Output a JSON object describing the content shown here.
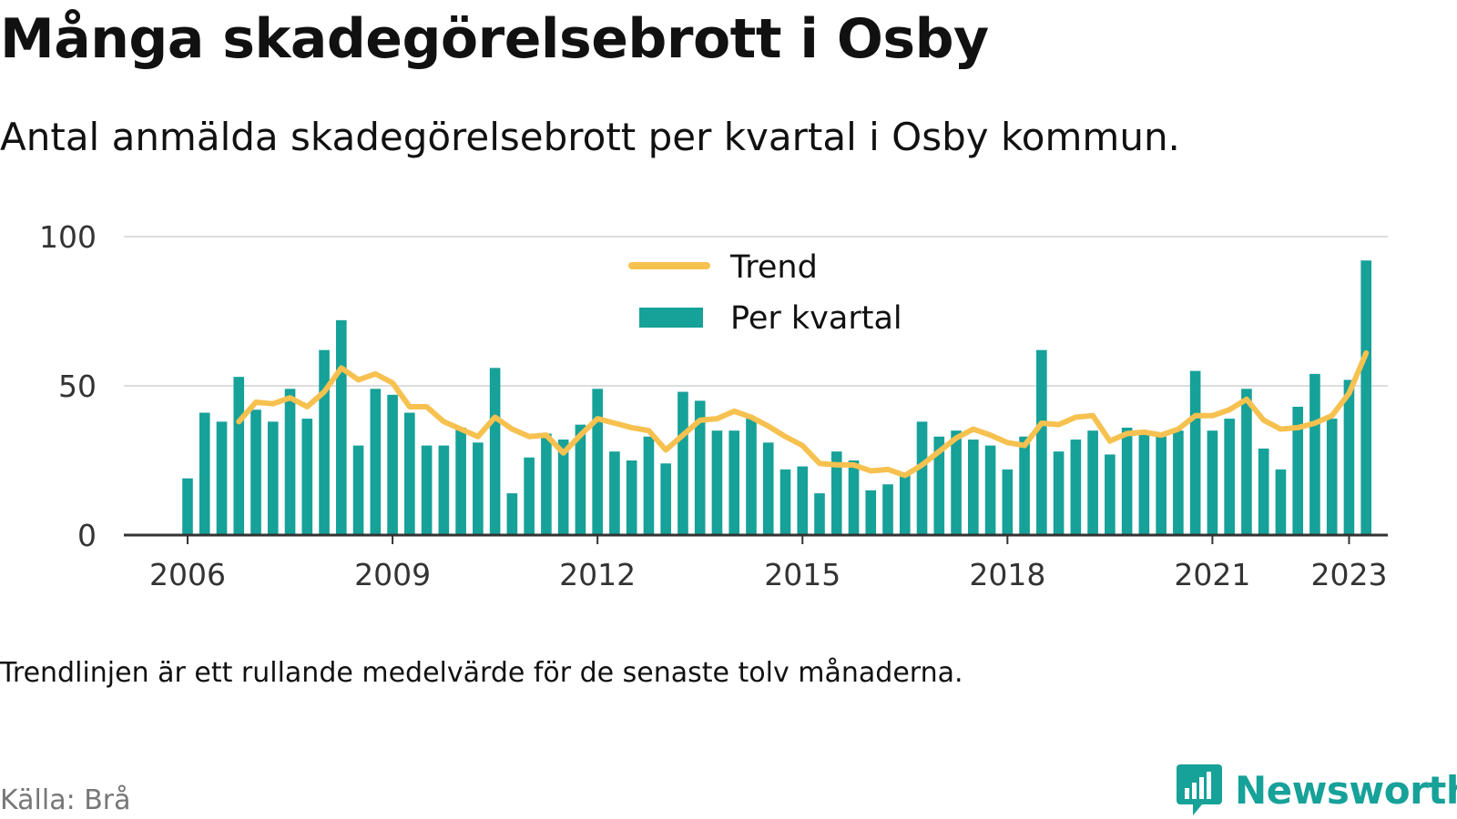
{
  "header": {
    "title": "Många skadegörelsebrott i Osby",
    "subtitle": "Antal anmälda skadegörelsebrott per kvartal i Osby kommun."
  },
  "footer": {
    "note": "Trendlinjen är ett rullande medelvärde för de senaste tolv månaderna.",
    "source": "Källa: Brå",
    "brand": "Newsworthy"
  },
  "colors": {
    "bars": "#16a199",
    "trend": "#f7c150",
    "grid": "#dddddd",
    "axis": "#333333",
    "brand": "#16a199"
  },
  "chart_data": {
    "type": "bar",
    "title": "Många skadegörelsebrott i Osby",
    "subtitle": "Antal anmälda skadegörelsebrott per kvartal i Osby kommun.",
    "ylim": [
      0,
      100
    ],
    "yticks": [
      0,
      50,
      100
    ],
    "xlim": [
      2006.0,
      2024.5
    ],
    "xticks": [
      2006,
      2009,
      2012,
      2015,
      2018,
      2021,
      2023
    ],
    "grid": true,
    "legend": {
      "position": "top-center",
      "entries": [
        "Trend",
        "Per kvartal"
      ]
    },
    "series": [
      {
        "name": "Per kvartal",
        "kind": "bar",
        "start": 2006.0,
        "step": 0.25,
        "values": [
          19,
          41,
          38,
          53,
          42,
          38,
          49,
          39,
          62,
          72,
          30,
          49,
          47,
          41,
          30,
          30,
          36,
          31,
          56,
          14,
          26,
          34,
          32,
          37,
          49,
          28,
          25,
          33,
          24,
          48,
          45,
          35,
          35,
          39,
          31,
          22,
          23,
          14,
          28,
          25,
          15,
          17,
          20,
          38,
          33,
          35,
          32,
          30,
          22,
          33,
          62,
          28,
          32,
          35,
          27,
          36,
          35,
          33,
          35,
          55,
          35,
          39,
          49,
          29,
          22,
          43,
          54,
          39,
          52,
          92
        ]
      },
      {
        "name": "Trend",
        "kind": "line",
        "start": 2006.75,
        "step": 0.25,
        "values": [
          38,
          44.5,
          44,
          46,
          43,
          48,
          56,
          52,
          54,
          51,
          43,
          43,
          38,
          35.5,
          33,
          39.5,
          35.5,
          33,
          33.5,
          27.5,
          33.5,
          39,
          37.5,
          36,
          35,
          28.5,
          33.5,
          38.5,
          39,
          41.5,
          39.5,
          36.5,
          33,
          30,
          24,
          23.5,
          23.5,
          21.5,
          22,
          20,
          23.5,
          28,
          32.5,
          35.5,
          33.5,
          31,
          30,
          37.5,
          37,
          39.5,
          40,
          31.5,
          34,
          34.5,
          33.5,
          35.5,
          40,
          40,
          42,
          45.5,
          38.5,
          35.5,
          36,
          37.5,
          40,
          47.5,
          61
        ]
      }
    ]
  }
}
